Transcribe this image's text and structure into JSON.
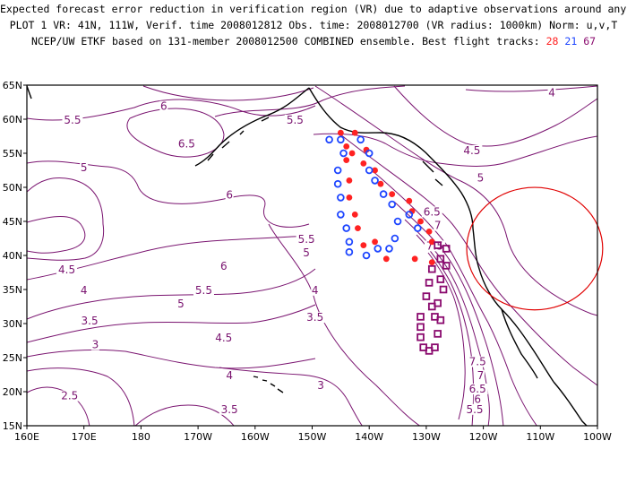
{
  "title": {
    "line1": "Expected forecast error reduction in verification region (VR) due to adaptive observations around any grid point.",
    "line2": "PLOT 1 VR: 41N, 111W, Verif. time 2008012812 Obs. time: 2008012700 (VR radius: 1000km) Norm: u,v,T",
    "line3_prefix": "NCEP/UW ETKF based on 131-member 2008012500 COMBINED ensemble.  Best flight tracks:",
    "track_red": "28",
    "track_blue": "21",
    "track_purple": "67"
  },
  "axes": {
    "x_ticks": [
      "160E",
      "170E",
      "180",
      "170W",
      "160W",
      "150W",
      "140W",
      "130W",
      "120W",
      "110W",
      "100W"
    ],
    "y_ticks": [
      "15N",
      "20N",
      "25N",
      "30N",
      "35N",
      "40N",
      "45N",
      "50N",
      "55N",
      "60N",
      "65N"
    ],
    "lon_range": [
      160,
      260
    ],
    "lat_range": [
      15,
      65
    ]
  },
  "contour_labels": [
    {
      "text": "6",
      "lon": 184,
      "lat": 61.5
    },
    {
      "text": "5.5",
      "lon": 168,
      "lat": 59.5
    },
    {
      "text": "6.5",
      "lon": 188,
      "lat": 56
    },
    {
      "text": "5",
      "lon": 170,
      "lat": 52.5
    },
    {
      "text": "6",
      "lon": 195.5,
      "lat": 48.5
    },
    {
      "text": "5.5",
      "lon": 207,
      "lat": 59.5
    },
    {
      "text": "4.5",
      "lon": 238,
      "lat": 55
    },
    {
      "text": "5",
      "lon": 239.5,
      "lat": 51
    },
    {
      "text": "4",
      "lon": 252,
      "lat": 63.5
    },
    {
      "text": "5.5",
      "lon": 209,
      "lat": 42
    },
    {
      "text": "5",
      "lon": 209,
      "lat": 40
    },
    {
      "text": "4.5",
      "lon": 167,
      "lat": 37.5
    },
    {
      "text": "6",
      "lon": 194.5,
      "lat": 38
    },
    {
      "text": "4",
      "lon": 170,
      "lat": 34.5
    },
    {
      "text": "5.5",
      "lon": 191,
      "lat": 34.5
    },
    {
      "text": "5",
      "lon": 187,
      "lat": 32.5
    },
    {
      "text": "4",
      "lon": 210.5,
      "lat": 34.5
    },
    {
      "text": "3.5",
      "lon": 171,
      "lat": 30
    },
    {
      "text": "3",
      "lon": 172,
      "lat": 26.5
    },
    {
      "text": "3.5",
      "lon": 210.5,
      "lat": 30.5
    },
    {
      "text": "4.5",
      "lon": 194.5,
      "lat": 27.5
    },
    {
      "text": "4",
      "lon": 195.5,
      "lat": 22
    },
    {
      "text": "3",
      "lon": 211.5,
      "lat": 20.5
    },
    {
      "text": "3.5",
      "lon": 195.5,
      "lat": 17
    },
    {
      "text": "2.5",
      "lon": 167.5,
      "lat": 19
    },
    {
      "text": "6.5",
      "lon": 231,
      "lat": 46
    },
    {
      "text": "7",
      "lon": 232,
      "lat": 44
    },
    {
      "text": "7.5",
      "lon": 231.5,
      "lat": 41
    },
    {
      "text": "7.5",
      "lon": 239,
      "lat": 24
    },
    {
      "text": "7",
      "lon": 239.5,
      "lat": 22
    },
    {
      "text": "6.5",
      "lon": 239,
      "lat": 20
    },
    {
      "text": "6",
      "lon": 239,
      "lat": 18.5
    },
    {
      "text": "5.5",
      "lon": 238.5,
      "lat": 17
    }
  ],
  "verification_region": {
    "center_lat": 41,
    "center_lon": 249,
    "radius_km": 1000
  },
  "flight_tracks": [
    {
      "name": "28",
      "color": "#ff2222",
      "marker": "dot",
      "points": [
        [
          215,
          58
        ],
        [
          217.5,
          58
        ],
        [
          216,
          56
        ],
        [
          216,
          54
        ],
        [
          216.5,
          51
        ],
        [
          216.5,
          48.5
        ],
        [
          217.5,
          46
        ],
        [
          218,
          44
        ],
        [
          219,
          41.5
        ],
        [
          217,
          55
        ],
        [
          219.5,
          55.5
        ],
        [
          219,
          53.5
        ],
        [
          221,
          52.5
        ],
        [
          222,
          50.5
        ],
        [
          224,
          49
        ],
        [
          227,
          48
        ],
        [
          227.5,
          46.5
        ],
        [
          229,
          45
        ],
        [
          230.5,
          43.5
        ],
        [
          231,
          42
        ],
        [
          221,
          42
        ],
        [
          223,
          39.5
        ],
        [
          228,
          39.5
        ],
        [
          231,
          39
        ]
      ]
    },
    {
      "name": "21",
      "color": "#1e46ff",
      "marker": "circle",
      "points": [
        [
          213,
          57
        ],
        [
          215,
          57
        ],
        [
          215.5,
          55
        ],
        [
          214.5,
          52.5
        ],
        [
          214.5,
          50.5
        ],
        [
          215,
          48.5
        ],
        [
          215,
          46
        ],
        [
          216,
          44
        ],
        [
          216.5,
          42
        ],
        [
          216.5,
          40.5
        ],
        [
          218.5,
          57
        ],
        [
          220,
          55
        ],
        [
          220,
          52.5
        ],
        [
          221,
          51
        ],
        [
          222.5,
          49
        ],
        [
          224,
          47.5
        ],
        [
          225,
          45
        ],
        [
          224.5,
          42.5
        ],
        [
          223.5,
          41
        ],
        [
          219.5,
          40
        ],
        [
          221.5,
          41
        ],
        [
          227,
          46
        ],
        [
          228.5,
          44
        ]
      ]
    },
    {
      "name": "67",
      "color": "#8a0a6e",
      "marker": "square",
      "points": [
        [
          232,
          41.5
        ],
        [
          233.5,
          41
        ],
        [
          232.5,
          39.5
        ],
        [
          233.5,
          38.5
        ],
        [
          231,
          38
        ],
        [
          232.5,
          36.5
        ],
        [
          233,
          35
        ],
        [
          230.5,
          36
        ],
        [
          230,
          34
        ],
        [
          231,
          32.5
        ],
        [
          231.5,
          31
        ],
        [
          229,
          31
        ],
        [
          229,
          29.5
        ],
        [
          229,
          28
        ],
        [
          229.5,
          26.5
        ],
        [
          230.5,
          26
        ],
        [
          231.5,
          26.5
        ],
        [
          232,
          28.5
        ],
        [
          232.5,
          30.5
        ],
        [
          232,
          33
        ]
      ]
    }
  ],
  "colors": {
    "contour": "#7a1470",
    "coast": "#000000",
    "vr_circle": "#e00000"
  }
}
